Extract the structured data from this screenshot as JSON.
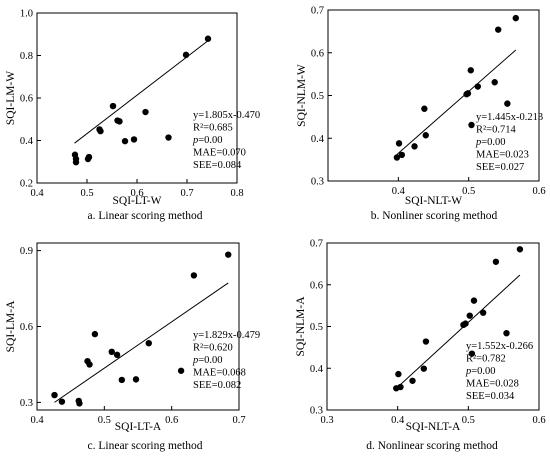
{
  "chart_data": [
    {
      "type": "scatter",
      "caption": "a. Linear scoring method",
      "xlabel": "SQI-LT-W",
      "ylabel": "SQI-LM-W",
      "xlim": [
        0.4,
        0.8
      ],
      "ylim": [
        0.2,
        1.0
      ],
      "xticks": [
        "0.4",
        "0.5",
        "0.6",
        "0.7",
        "0.8"
      ],
      "yticks": [
        "0.2",
        "0.4",
        "0.6",
        "0.8",
        "1.0"
      ],
      "x": [
        0.476,
        0.478,
        0.478,
        0.502,
        0.504,
        0.525,
        0.527,
        0.552,
        0.561,
        0.565,
        0.576,
        0.594,
        0.617,
        0.663,
        0.698,
        0.742
      ],
      "y": [
        0.333,
        0.298,
        0.313,
        0.313,
        0.322,
        0.452,
        0.444,
        0.562,
        0.494,
        0.49,
        0.397,
        0.405,
        0.534,
        0.414,
        0.803,
        0.879
      ],
      "fit": {
        "slope": 1.805,
        "intercept": -0.47,
        "x_range": [
          0.475,
          0.742
        ]
      },
      "stats": [
        "y=1.805x-0.470",
        "R²=0.685",
        "p=0.00",
        "MAE=0.070",
        "SEE=0.084"
      ]
    },
    {
      "type": "scatter",
      "caption": "b. Nonliner scoring method",
      "xlabel": "SQI-NLT-W",
      "ylabel": "SQI-NLM-W",
      "xlim": [
        0.3,
        0.6
      ],
      "ylim": [
        0.3,
        0.7
      ],
      "xticks": [
        "0.4",
        "0.5",
        "0.6"
      ],
      "yticks": [
        "0.3",
        "0.4",
        "0.5",
        "0.6",
        "0.7"
      ],
      "x": [
        0.398,
        0.401,
        0.405,
        0.423,
        0.437,
        0.439,
        0.497,
        0.499,
        0.503,
        0.504,
        0.513,
        0.537,
        0.542,
        0.555,
        0.567
      ],
      "y": [
        0.355,
        0.388,
        0.361,
        0.381,
        0.469,
        0.407,
        0.503,
        0.505,
        0.559,
        0.431,
        0.521,
        0.531,
        0.654,
        0.481,
        0.681
      ],
      "fit": {
        "slope": 1.445,
        "intercept": -0.213,
        "x_range": [
          0.398,
          0.567
        ]
      },
      "stats": [
        "y=1.445x-0.213",
        "R²=0.714",
        "p=0.00",
        "MAE=0.023",
        "SEE=0.027"
      ]
    },
    {
      "type": "scatter",
      "caption": "c. Linear scoring method",
      "xlabel": "SQI-LT-A",
      "ylabel": "SQI-LM-A",
      "xlim": [
        0.4,
        0.7
      ],
      "ylim": [
        0.27,
        0.93
      ],
      "xticks": [
        "0.4",
        "0.5",
        "0.6",
        "0.7"
      ],
      "yticks": [
        "0.3",
        "0.6",
        "0.9"
      ],
      "x": [
        0.426,
        0.437,
        0.462,
        0.463,
        0.475,
        0.478,
        0.486,
        0.511,
        0.519,
        0.526,
        0.547,
        0.566,
        0.614,
        0.633,
        0.684
      ],
      "y": [
        0.329,
        0.303,
        0.306,
        0.296,
        0.463,
        0.45,
        0.57,
        0.5,
        0.488,
        0.389,
        0.391,
        0.534,
        0.425,
        0.802,
        0.884
      ],
      "fit": {
        "slope": 1.829,
        "intercept": -0.479,
        "x_range": [
          0.426,
          0.684
        ]
      },
      "stats": [
        "y=1.829x-0.479",
        "R²=0.620",
        "p=0.00",
        "MAE=0.068",
        "SEE=0.082"
      ]
    },
    {
      "type": "scatter",
      "caption": "d. Nonlinear scoring method",
      "xlabel": "SQI-NLT-A",
      "ylabel": "SQI-NLM-A",
      "xlim": [
        0.3,
        0.6
      ],
      "ylim": [
        0.3,
        0.7
      ],
      "xticks": [
        "0.3",
        "0.4",
        "0.5",
        "0.6"
      ],
      "yticks": [
        "0.3",
        "0.4",
        "0.5",
        "0.6",
        "0.7"
      ],
      "x": [
        0.398,
        0.401,
        0.404,
        0.421,
        0.437,
        0.44,
        0.493,
        0.496,
        0.502,
        0.505,
        0.508,
        0.521,
        0.539,
        0.554,
        0.573
      ],
      "y": [
        0.352,
        0.386,
        0.355,
        0.37,
        0.399,
        0.464,
        0.504,
        0.507,
        0.526,
        0.435,
        0.562,
        0.533,
        0.655,
        0.484,
        0.685
      ],
      "fit": {
        "slope": 1.552,
        "intercept": -0.266,
        "x_range": [
          0.398,
          0.573
        ]
      },
      "stats": [
        "y=1.552x-0.266",
        "R²=0.782",
        "p=0.00",
        "MAE=0.028",
        "SEE=0.034"
      ]
    }
  ]
}
